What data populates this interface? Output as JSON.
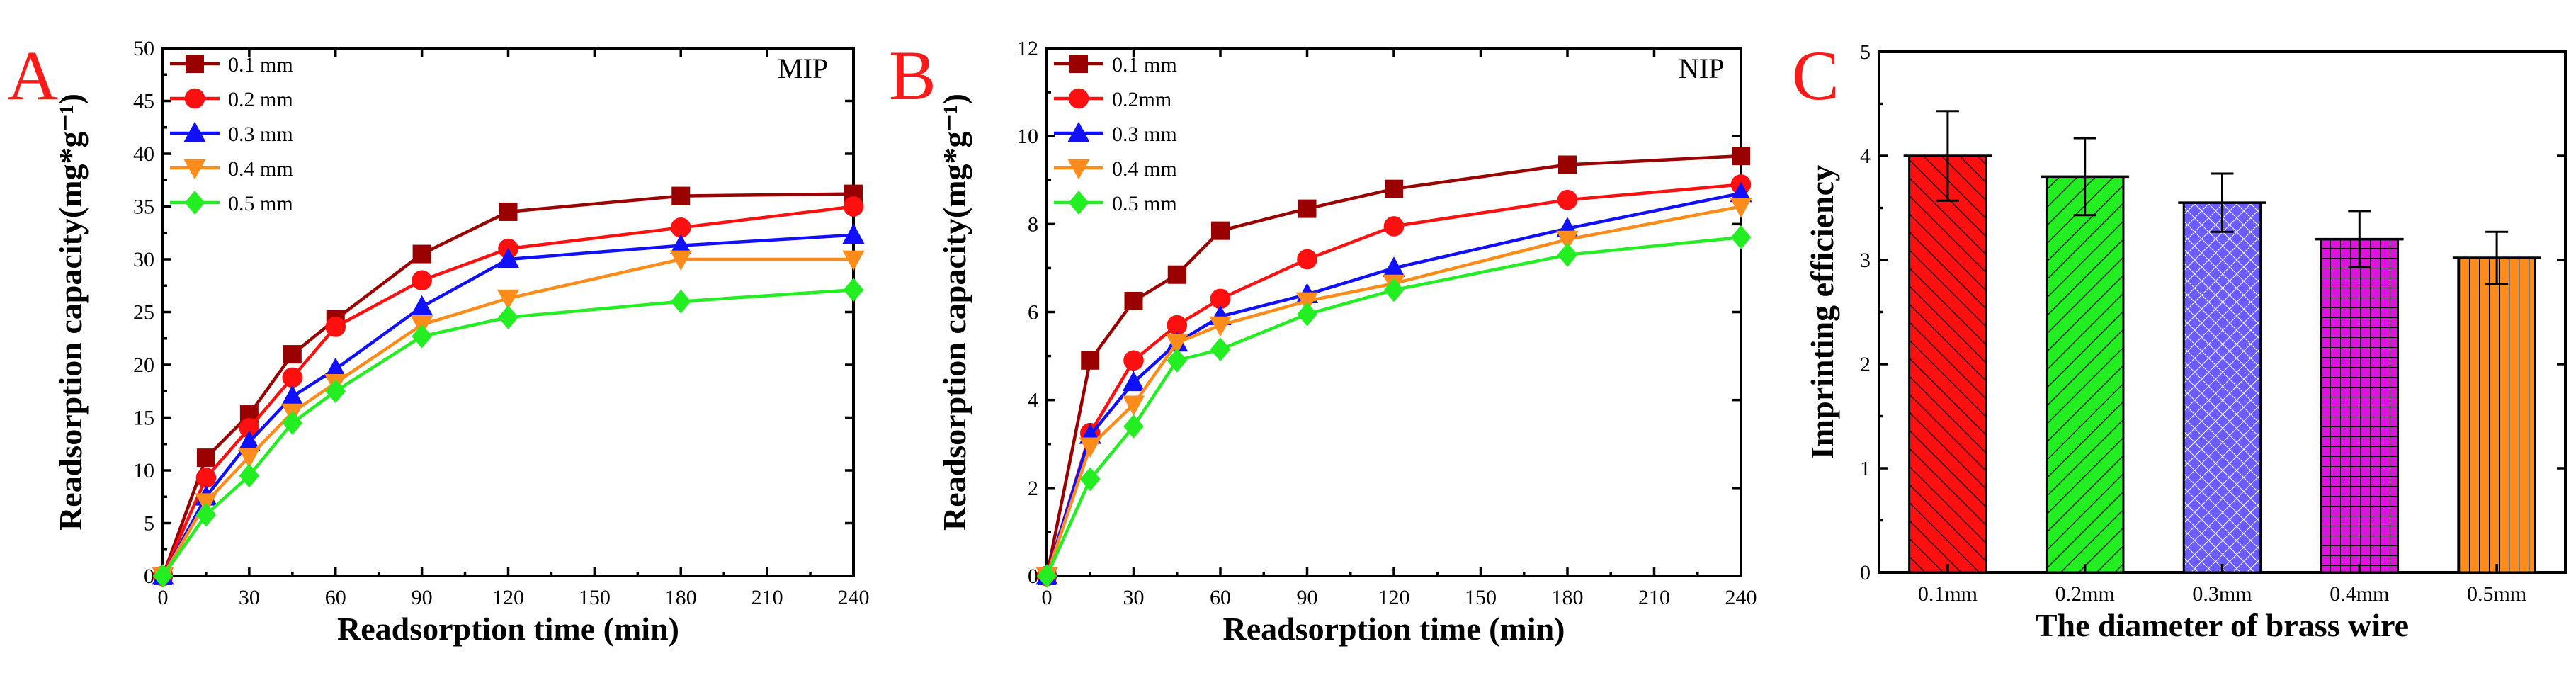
{
  "figure_labels": {
    "panel_a": "A",
    "panel_b": "B",
    "panel_c": "C",
    "tag_a": "MIP",
    "tag_b": "NIP"
  },
  "colors": {
    "panel_letter": "#ff1a1a",
    "series": [
      "#9b0000",
      "#ff1010",
      "#1010ff",
      "#ff8c1a",
      "#22ee22"
    ],
    "bars": [
      "#ff1010",
      "#22ee22",
      "#6a5cff",
      "#e010e0",
      "#ff8c1a"
    ]
  },
  "markers": [
    "square",
    "circle",
    "triangle-up",
    "triangle-down",
    "diamond"
  ],
  "chart_data": [
    {
      "type": "line",
      "title": "MIP",
      "xlabel": "Readsorption time (min)",
      "ylabel": "Readsorption capacity(mg*g⁻¹)",
      "xlim": [
        0,
        240
      ],
      "ylim": [
        0,
        50
      ],
      "xticks": [
        0,
        30,
        60,
        90,
        120,
        150,
        180,
        210,
        240
      ],
      "yticks": [
        0,
        5,
        10,
        15,
        20,
        25,
        30,
        35,
        40,
        45,
        50
      ],
      "x": [
        0,
        15,
        30,
        45,
        60,
        90,
        120,
        180,
        240
      ],
      "legend_position": "top-left",
      "series": [
        {
          "name": "0.1 mm",
          "values": [
            0,
            11.2,
            15.3,
            21.0,
            24.3,
            30.5,
            34.5,
            36.0,
            36.2
          ]
        },
        {
          "name": "0.2 mm",
          "values": [
            0,
            9.3,
            14.0,
            18.8,
            23.6,
            28.0,
            31.0,
            33.0,
            35.0
          ]
        },
        {
          "name": "0.3 mm",
          "values": [
            0,
            7.5,
            12.7,
            17.0,
            19.6,
            25.5,
            30.0,
            31.3,
            32.3
          ]
        },
        {
          "name": "0.4 mm",
          "values": [
            0,
            7.0,
            11.3,
            15.5,
            18.3,
            23.8,
            26.3,
            30.0,
            30.0
          ]
        },
        {
          "name": "0.5 mm",
          "values": [
            0,
            5.8,
            9.5,
            14.5,
            17.5,
            22.7,
            24.5,
            26.0,
            27.1
          ]
        }
      ]
    },
    {
      "type": "line",
      "title": "NIP",
      "xlabel": "Readsorption time (min)",
      "ylabel": "Readsorption capacity(mg*g⁻¹)",
      "xlim": [
        0,
        240
      ],
      "ylim": [
        0,
        12
      ],
      "xticks": [
        0,
        30,
        60,
        90,
        120,
        150,
        180,
        210,
        240
      ],
      "yticks": [
        0,
        2,
        4,
        6,
        8,
        10,
        12
      ],
      "x": [
        0,
        15,
        30,
        45,
        60,
        90,
        120,
        180,
        240
      ],
      "legend_position": "top-left",
      "series": [
        {
          "name": "0.1 mm",
          "values": [
            0,
            4.9,
            6.25,
            6.85,
            7.85,
            8.35,
            8.8,
            9.35,
            9.55
          ]
        },
        {
          "name": "0.2mm",
          "values": [
            0,
            3.25,
            4.9,
            5.7,
            6.3,
            7.2,
            7.95,
            8.55,
            8.9
          ]
        },
        {
          "name": "0.3 mm",
          "values": [
            0,
            3.2,
            4.4,
            5.3,
            5.9,
            6.4,
            7.0,
            7.9,
            8.7
          ]
        },
        {
          "name": "0.4 mm",
          "values": [
            0,
            2.95,
            3.9,
            5.3,
            5.7,
            6.25,
            6.65,
            7.65,
            8.4
          ]
        },
        {
          "name": "0.5 mm",
          "values": [
            0,
            2.2,
            3.4,
            4.9,
            5.15,
            5.95,
            6.5,
            7.3,
            7.7
          ]
        }
      ]
    },
    {
      "type": "bar",
      "xlabel": "The diameter of brass wire",
      "ylabel": "Imprinting efficiency",
      "ylim": [
        0,
        5
      ],
      "yticks": [
        0,
        1,
        2,
        3,
        4,
        5
      ],
      "categories": [
        "0.1mm",
        "0.2mm",
        "0.3mm",
        "0.4mm",
        "0.5mm"
      ],
      "values": [
        4.0,
        3.8,
        3.55,
        3.2,
        3.02
      ],
      "errors": [
        0.43,
        0.37,
        0.28,
        0.27,
        0.25
      ],
      "patterns": [
        "diagonal-forward",
        "diagonal-back",
        "cross-hatch",
        "grid",
        "vertical"
      ]
    }
  ]
}
